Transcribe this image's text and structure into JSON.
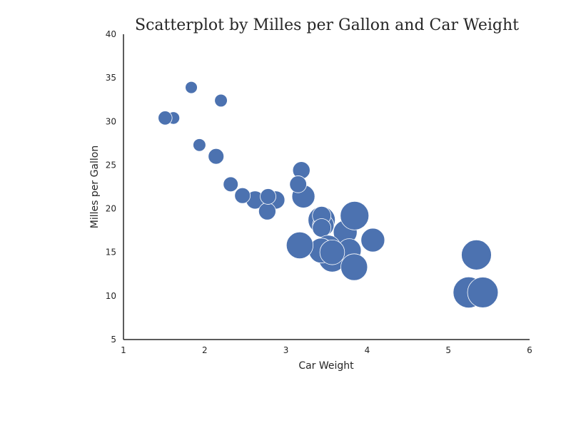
{
  "chart_data": {
    "type": "scatter",
    "title": "Scatterplot by Milles per Gallon and  Car Weight",
    "xlabel": "Car Weight",
    "ylabel": "Milles per Gallon",
    "xlim": [
      1,
      6
    ],
    "ylim": [
      5,
      40
    ],
    "xticks": [
      "1",
      "2",
      "3",
      "4",
      "5",
      "6"
    ],
    "yticks": [
      "5",
      "10",
      "15",
      "20",
      "25",
      "30",
      "35",
      "40"
    ],
    "grid": false,
    "color": "#4c72b0",
    "size_encoding": "disp",
    "points": [
      {
        "x": 2.62,
        "y": 21.0,
        "size": 160
      },
      {
        "x": 2.875,
        "y": 21.0,
        "size": 160
      },
      {
        "x": 2.32,
        "y": 22.8,
        "size": 108
      },
      {
        "x": 3.215,
        "y": 21.4,
        "size": 258
      },
      {
        "x": 3.44,
        "y": 18.7,
        "size": 360
      },
      {
        "x": 3.46,
        "y": 18.1,
        "size": 225
      },
      {
        "x": 3.57,
        "y": 14.3,
        "size": 360
      },
      {
        "x": 3.19,
        "y": 24.4,
        "size": 147
      },
      {
        "x": 3.15,
        "y": 22.8,
        "size": 141
      },
      {
        "x": 3.44,
        "y": 19.2,
        "size": 168
      },
      {
        "x": 3.44,
        "y": 17.8,
        "size": 168
      },
      {
        "x": 4.07,
        "y": 16.4,
        "size": 276
      },
      {
        "x": 3.73,
        "y": 17.3,
        "size": 276
      },
      {
        "x": 3.78,
        "y": 15.2,
        "size": 276
      },
      {
        "x": 5.25,
        "y": 10.4,
        "size": 472
      },
      {
        "x": 5.424,
        "y": 10.4,
        "size": 460
      },
      {
        "x": 5.345,
        "y": 14.7,
        "size": 440
      },
      {
        "x": 2.2,
        "y": 32.4,
        "size": 79
      },
      {
        "x": 1.615,
        "y": 30.4,
        "size": 76
      },
      {
        "x": 1.835,
        "y": 33.9,
        "size": 71
      },
      {
        "x": 2.465,
        "y": 21.5,
        "size": 120
      },
      {
        "x": 3.52,
        "y": 15.5,
        "size": 318
      },
      {
        "x": 3.435,
        "y": 15.2,
        "size": 304
      },
      {
        "x": 3.84,
        "y": 13.3,
        "size": 350
      },
      {
        "x": 3.845,
        "y": 19.2,
        "size": 400
      },
      {
        "x": 1.935,
        "y": 27.3,
        "size": 79
      },
      {
        "x": 2.14,
        "y": 26.0,
        "size": 120
      },
      {
        "x": 1.513,
        "y": 30.4,
        "size": 95
      },
      {
        "x": 3.17,
        "y": 15.8,
        "size": 351
      },
      {
        "x": 2.77,
        "y": 19.7,
        "size": 145
      },
      {
        "x": 3.57,
        "y": 15.0,
        "size": 301
      },
      {
        "x": 2.78,
        "y": 21.4,
        "size": 121
      }
    ]
  }
}
